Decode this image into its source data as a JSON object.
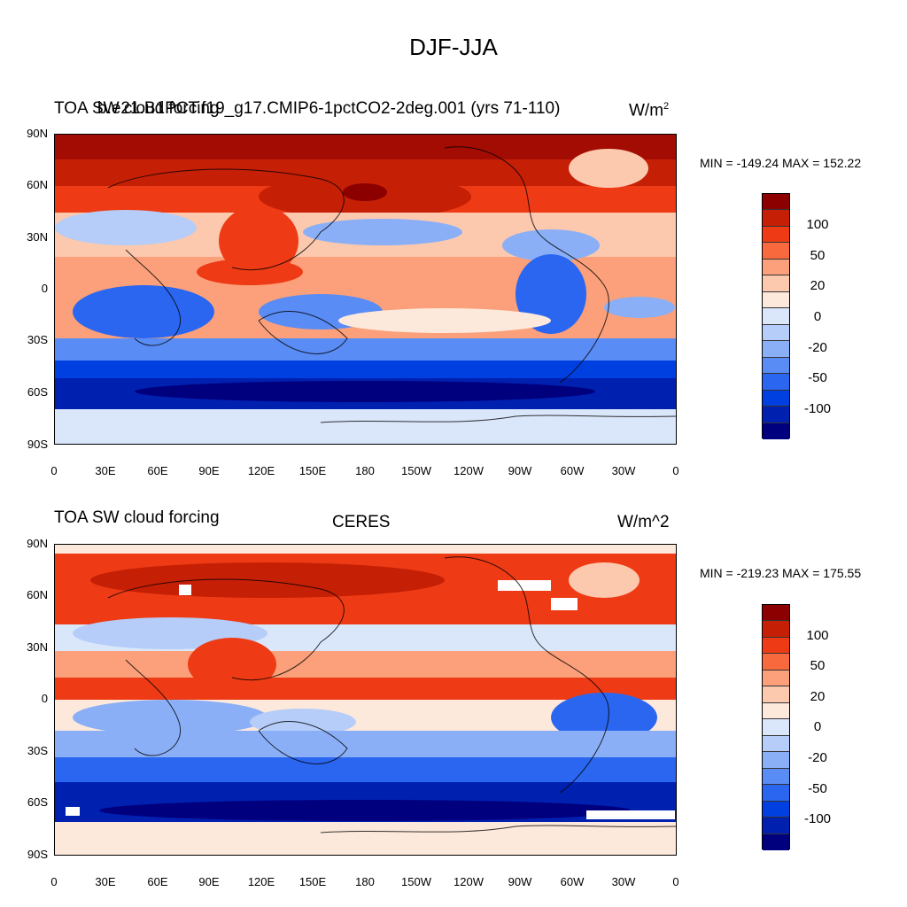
{
  "main_title": "DJF-JJA",
  "colormap": [
    "#00007f",
    "#0020b0",
    "#0040e0",
    "#2a66f0",
    "#5a8cf5",
    "#8aaff7",
    "#b5cdf8",
    "#dae7fb",
    "#fde9dc",
    "#fcc9ae",
    "#fba07a",
    "#f86a3e",
    "#ee3b15",
    "#c51f05",
    "#8c0000"
  ],
  "colorbar_labels": [
    "100",
    "50",
    "20",
    "0",
    "-20",
    "-50",
    "-100"
  ],
  "lat_labels": [
    "90N",
    "60N",
    "30N",
    "0",
    "30S",
    "60S",
    "90S"
  ],
  "lon_labels": [
    "0",
    "30E",
    "60E",
    "90E",
    "120E",
    "150E",
    "180",
    "150W",
    "120W",
    "90W",
    "60W",
    "30W",
    "0"
  ],
  "top_panel": {
    "left_title": "TOA SW cloud forcing",
    "center_title": "b.e21.B1PCT.f19_g17.CMIP6-1pctCO2-2deg.001 (yrs 71-110)",
    "units_base": "W/m",
    "units_sup": "2",
    "minmax": "MIN = -149.24 MAX = 152.22"
  },
  "bottom_panel": {
    "left_title": "TOA SW cloud forcing",
    "center_title": "CERES",
    "units": "W/m^2",
    "minmax": "MIN = -219.23 MAX = 175.55"
  }
}
